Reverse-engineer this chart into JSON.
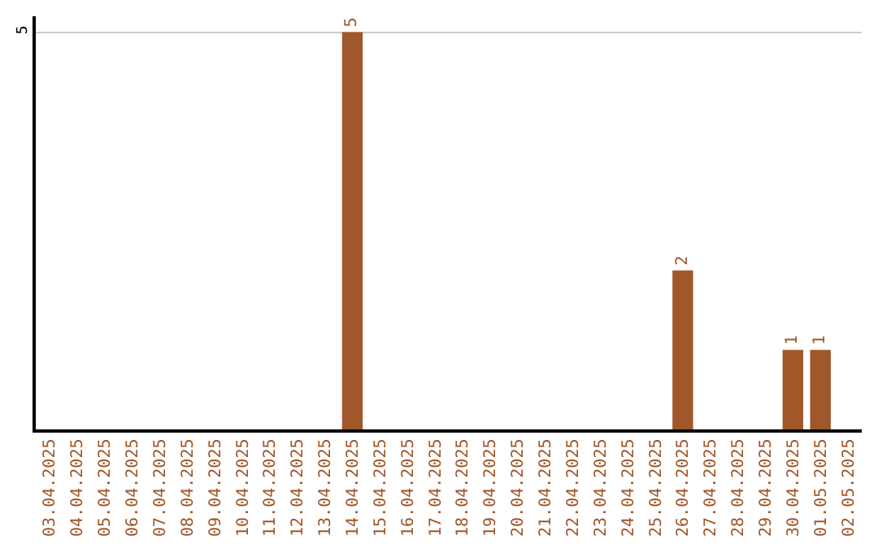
{
  "chart_data": {
    "type": "bar",
    "categories": [
      "03.04.2025",
      "04.04.2025",
      "05.04.2025",
      "06.04.2025",
      "07.04.2025",
      "08.04.2025",
      "09.04.2025",
      "10.04.2025",
      "11.04.2025",
      "12.04.2025",
      "13.04.2025",
      "14.04.2025",
      "15.04.2025",
      "16.04.2025",
      "17.04.2025",
      "18.04.2025",
      "19.04.2025",
      "20.04.2025",
      "21.04.2025",
      "22.04.2025",
      "23.04.2025",
      "24.04.2025",
      "25.04.2025",
      "26.04.2025",
      "27.04.2025",
      "28.04.2025",
      "29.04.2025",
      "30.04.2025",
      "01.05.2025",
      "02.05.2025"
    ],
    "values": [
      0,
      0,
      0,
      0,
      0,
      0,
      0,
      0,
      0,
      0,
      0,
      5,
      0,
      0,
      0,
      0,
      0,
      0,
      0,
      0,
      0,
      0,
      0,
      2,
      0,
      0,
      0,
      1,
      1,
      0
    ],
    "value_labels": [
      null,
      null,
      null,
      null,
      null,
      null,
      null,
      null,
      null,
      null,
      null,
      "5",
      null,
      null,
      null,
      null,
      null,
      null,
      null,
      null,
      null,
      null,
      null,
      "2",
      null,
      null,
      null,
      "1",
      "1",
      null
    ],
    "color": "#a0572a",
    "ylim": [
      0,
      5.2
    ],
    "yticks": [
      5
    ],
    "grid": "y",
    "legend": false
  }
}
